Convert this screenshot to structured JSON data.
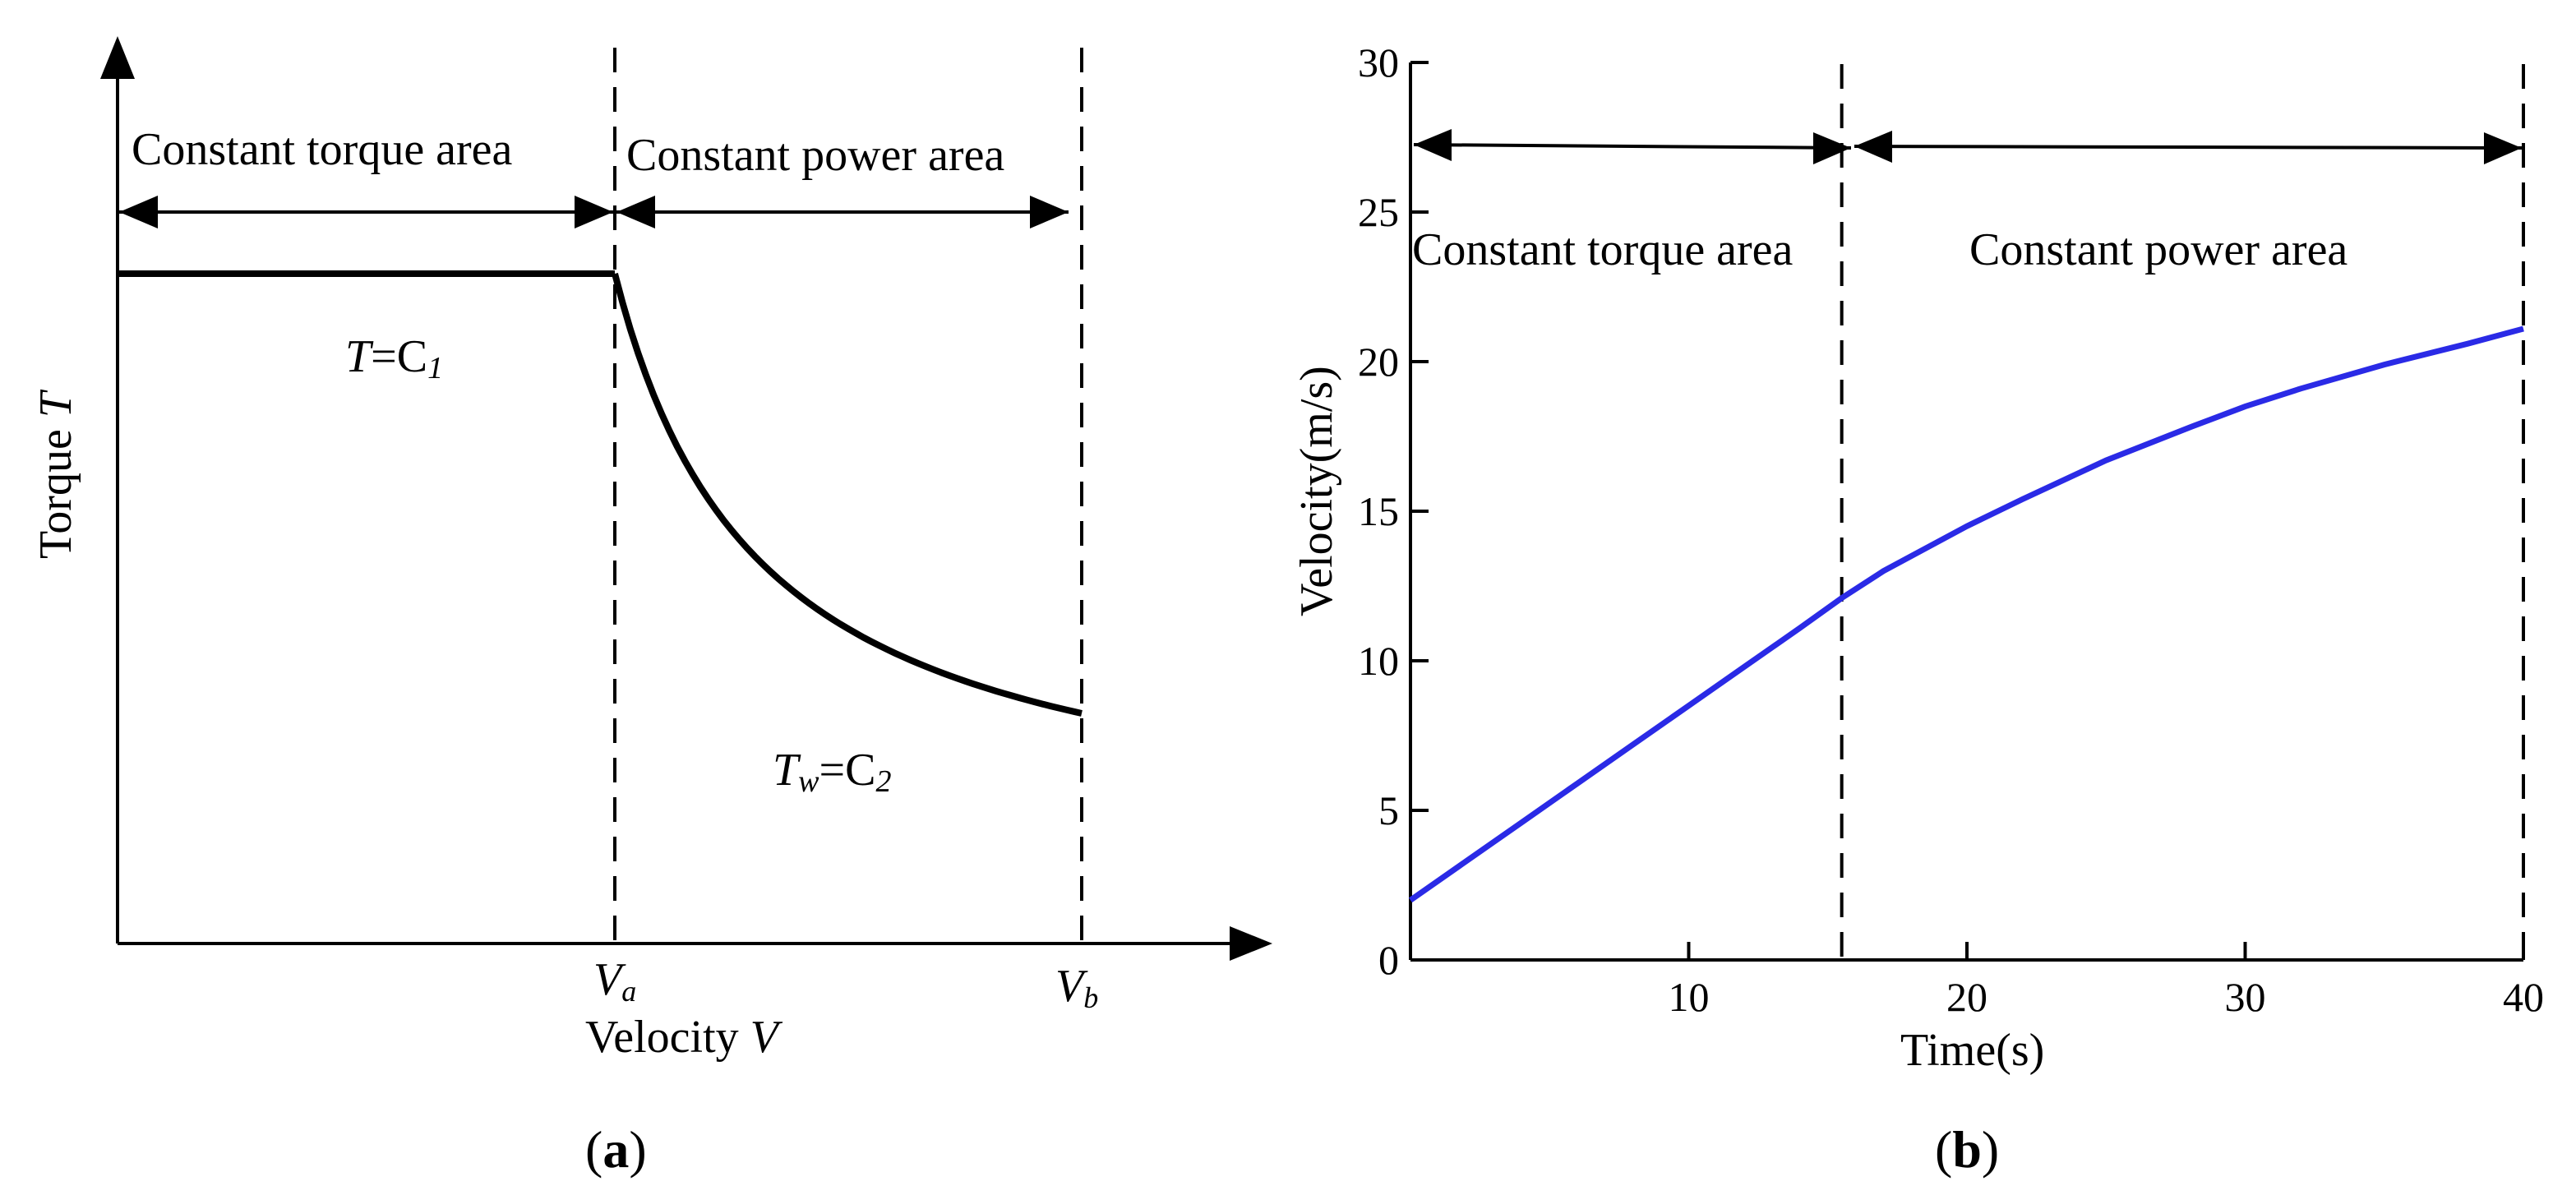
{
  "chart_data": [
    {
      "type": "line",
      "panel": "a",
      "caption": "(a)",
      "xlabel": "Velocity V",
      "ylabel": "Torque T",
      "regions": [
        {
          "name": "Constant torque area",
          "from": "0",
          "to": "Va"
        },
        {
          "name": "Constant power area",
          "from": "Va",
          "to": "Vb"
        }
      ],
      "ticks": [
        "Va",
        "Vb"
      ],
      "annotations": [
        "T=C1",
        "Tw=C2"
      ],
      "curve": {
        "constant_segment": "T = C1 from 0 to Va",
        "hyperbolic_segment": "Tw = C2 (T decreasing as 1/V) from Va to Vb"
      },
      "grid": false
    },
    {
      "type": "line",
      "panel": "b",
      "caption": "(b)",
      "xlabel": "Time(s)",
      "ylabel": "Velocity(m/s)",
      "xlim": [
        0,
        40
      ],
      "ylim": [
        0,
        30
      ],
      "xticks": [
        10,
        20,
        30,
        40
      ],
      "yticks": [
        0,
        5,
        10,
        15,
        20,
        25,
        30
      ],
      "regions": [
        {
          "name": "Constant torque area",
          "from": 0,
          "to": 15.5
        },
        {
          "name": "Constant power area",
          "from": 15.5,
          "to": 40
        }
      ],
      "boundaries": [
        15.5,
        40
      ],
      "series": [
        {
          "color": "#2a2ae6",
          "x": [
            0,
            2,
            4,
            6,
            8,
            10,
            12,
            14,
            15.5,
            17,
            20,
            22,
            25,
            28,
            30,
            32,
            35,
            38,
            40
          ],
          "y": [
            2.0,
            3.3,
            4.6,
            5.9,
            7.2,
            8.5,
            9.8,
            11.1,
            12.1,
            13.0,
            14.5,
            15.4,
            16.7,
            17.8,
            18.5,
            19.1,
            19.9,
            20.6,
            21.1
          ]
        }
      ],
      "grid": false
    }
  ],
  "labels": {
    "a_region1": "Constant torque area",
    "a_region2": "Constant power area",
    "a_ylabel": "Torque",
    "a_ylabel_var": "T",
    "a_xlabel": "Velocity",
    "a_xlabel_var": "V",
    "a_ann1_var": "T",
    "a_ann1_rest": "=C",
    "a_ann1_sub": "1",
    "a_ann2_var": "T",
    "a_ann2_varsub": "w",
    "a_ann2_rest": "=C",
    "a_ann2_sub": "2",
    "a_tick_va": "V",
    "a_tick_va_sub": "a",
    "a_tick_vb": "V",
    "a_tick_vb_sub": "b",
    "a_caption_open": "(",
    "a_caption_letter": "a",
    "a_caption_close": ")",
    "b_region1": "Constant torque area",
    "b_region2": "Constant power area",
    "b_ylabel": "Velocity(m/s)",
    "b_xlabel": "Time(s)",
    "b_caption_open": "(",
    "b_caption_letter": "b",
    "b_caption_close": ")"
  }
}
